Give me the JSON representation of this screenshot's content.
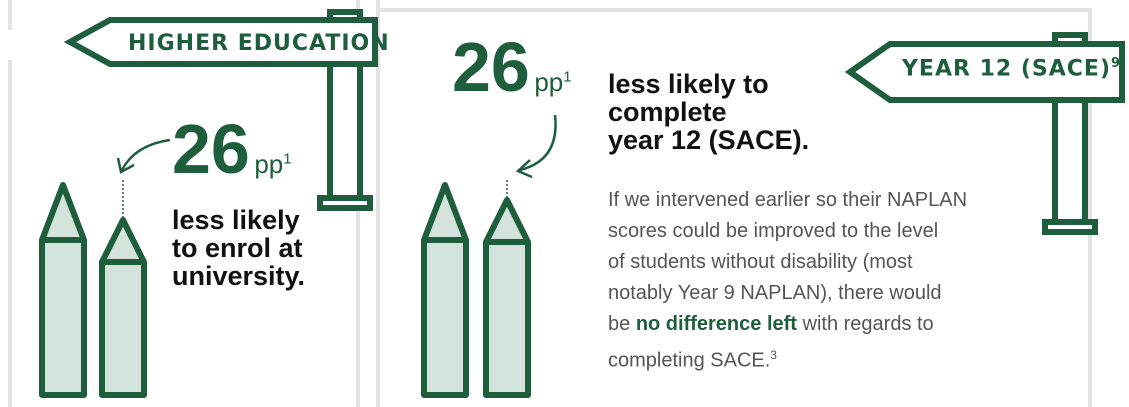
{
  "left": {
    "sign": "HIGHER EDUCATION",
    "figure": "26",
    "unit": "pp",
    "footnote": "1",
    "statement_lines": [
      "less likely",
      "to enrol at",
      "university."
    ]
  },
  "right": {
    "sign": "YEAR 12 (SACE)",
    "sign_footnote": "9",
    "figure": "26",
    "unit": "pp",
    "footnote": "1",
    "statement_lines": [
      "less likely to",
      "complete",
      "year 12 (SACE)."
    ],
    "paragraph": {
      "lines": [
        "If we intervened earlier so their NAPLAN",
        "scores could be improved to the level",
        "of students without disability (most",
        "notably Year 9 NAPLAN), there would"
      ],
      "line5": {
        "before": "be ",
        "bold": "no difference left",
        "after": " with regards to"
      },
      "last": "completing SACE.",
      "footnote": "3"
    }
  }
}
